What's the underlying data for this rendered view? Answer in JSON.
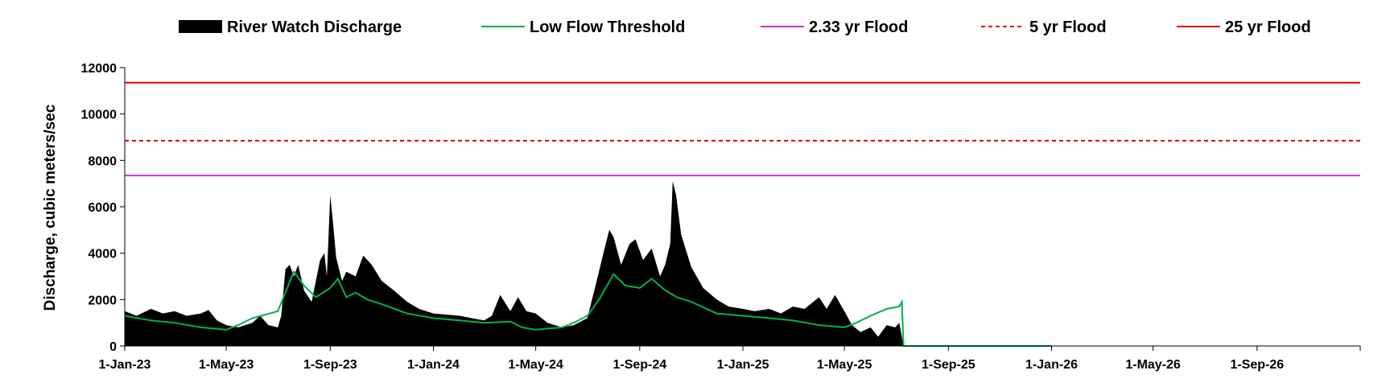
{
  "chart_data": {
    "type": "area",
    "title": "",
    "xlabel": "",
    "ylabel": "Discharge, cubic meters/sec",
    "ylim": [
      0,
      12000
    ],
    "yticks": [
      0,
      2000,
      4000,
      6000,
      8000,
      10000,
      12000
    ],
    "xlim": [
      "2023-01-01",
      "2027-01-01"
    ],
    "xticks": [
      {
        "date": "2023-01-01",
        "label": "1-Jan-23"
      },
      {
        "date": "2023-05-01",
        "label": "1-May-23"
      },
      {
        "date": "2023-09-01",
        "label": "1-Sep-23"
      },
      {
        "date": "2024-01-01",
        "label": "1-Jan-24"
      },
      {
        "date": "2024-05-01",
        "label": "1-May-24"
      },
      {
        "date": "2024-09-01",
        "label": "1-Sep-24"
      },
      {
        "date": "2025-01-01",
        "label": "1-Jan-25"
      },
      {
        "date": "2025-05-01",
        "label": "1-May-25"
      },
      {
        "date": "2025-09-01",
        "label": "1-Sep-25"
      },
      {
        "date": "2026-01-01",
        "label": "1-Jan-26"
      },
      {
        "date": "2026-05-01",
        "label": "1-May-26"
      },
      {
        "date": "2026-09-01",
        "label": "1-Sep-26"
      }
    ],
    "grid": false,
    "legend": "top",
    "series": [
      {
        "name": "River Watch Discharge",
        "kind": "area",
        "color": "#000000",
        "points": [
          [
            "2023-01-01",
            1500
          ],
          [
            "2023-01-15",
            1300
          ],
          [
            "2023-02-01",
            1600
          ],
          [
            "2023-02-15",
            1400
          ],
          [
            "2023-03-01",
            1500
          ],
          [
            "2023-03-15",
            1300
          ],
          [
            "2023-04-01",
            1400
          ],
          [
            "2023-04-10",
            1550
          ],
          [
            "2023-04-20",
            1100
          ],
          [
            "2023-05-01",
            900
          ],
          [
            "2023-05-15",
            800
          ],
          [
            "2023-06-01",
            1000
          ],
          [
            "2023-06-10",
            1300
          ],
          [
            "2023-06-20",
            900
          ],
          [
            "2023-07-01",
            800
          ],
          [
            "2023-07-05",
            1300
          ],
          [
            "2023-07-10",
            3300
          ],
          [
            "2023-07-15",
            3500
          ],
          [
            "2023-07-20",
            3000
          ],
          [
            "2023-07-25",
            3500
          ],
          [
            "2023-08-01",
            2400
          ],
          [
            "2023-08-10",
            1900
          ],
          [
            "2023-08-20",
            3700
          ],
          [
            "2023-08-25",
            4000
          ],
          [
            "2023-08-28",
            3000
          ],
          [
            "2023-09-01",
            6500
          ],
          [
            "2023-09-04",
            5400
          ],
          [
            "2023-09-08",
            3800
          ],
          [
            "2023-09-15",
            2800
          ],
          [
            "2023-09-20",
            3200
          ],
          [
            "2023-10-01",
            3000
          ],
          [
            "2023-10-10",
            3900
          ],
          [
            "2023-10-20",
            3500
          ],
          [
            "2023-11-01",
            2800
          ],
          [
            "2023-11-15",
            2400
          ],
          [
            "2023-12-01",
            1900
          ],
          [
            "2023-12-15",
            1600
          ],
          [
            "2024-01-01",
            1400
          ],
          [
            "2024-02-01",
            1300
          ],
          [
            "2024-02-15",
            1200
          ],
          [
            "2024-03-01",
            1100
          ],
          [
            "2024-03-10",
            1300
          ],
          [
            "2024-03-20",
            2200
          ],
          [
            "2024-04-01",
            1500
          ],
          [
            "2024-04-10",
            2100
          ],
          [
            "2024-04-20",
            1500
          ],
          [
            "2024-05-01",
            1400
          ],
          [
            "2024-05-15",
            1000
          ],
          [
            "2024-06-01",
            800
          ],
          [
            "2024-06-15",
            900
          ],
          [
            "2024-07-01",
            1200
          ],
          [
            "2024-07-10",
            2500
          ],
          [
            "2024-07-20",
            4000
          ],
          [
            "2024-07-27",
            5000
          ],
          [
            "2024-08-01",
            4700
          ],
          [
            "2024-08-10",
            3500
          ],
          [
            "2024-08-20",
            4400
          ],
          [
            "2024-08-27",
            4600
          ],
          [
            "2024-09-05",
            3700
          ],
          [
            "2024-09-15",
            4200
          ],
          [
            "2024-09-25",
            3000
          ],
          [
            "2024-10-01",
            3500
          ],
          [
            "2024-10-07",
            4400
          ],
          [
            "2024-10-10",
            7100
          ],
          [
            "2024-10-14",
            6500
          ],
          [
            "2024-10-20",
            4800
          ],
          [
            "2024-11-01",
            3400
          ],
          [
            "2024-11-15",
            2500
          ],
          [
            "2024-12-01",
            2000
          ],
          [
            "2024-12-15",
            1700
          ],
          [
            "2025-01-01",
            1600
          ],
          [
            "2025-01-15",
            1500
          ],
          [
            "2025-02-01",
            1600
          ],
          [
            "2025-02-15",
            1400
          ],
          [
            "2025-03-01",
            1700
          ],
          [
            "2025-03-15",
            1600
          ],
          [
            "2025-04-01",
            2100
          ],
          [
            "2025-04-10",
            1600
          ],
          [
            "2025-04-20",
            2200
          ],
          [
            "2025-05-01",
            1500
          ],
          [
            "2025-05-10",
            900
          ],
          [
            "2025-05-20",
            600
          ],
          [
            "2025-06-01",
            800
          ],
          [
            "2025-06-10",
            400
          ],
          [
            "2025-06-20",
            900
          ],
          [
            "2025-06-30",
            800
          ],
          [
            "2025-07-05",
            1000
          ],
          [
            "2025-07-10",
            0
          ]
        ]
      },
      {
        "name": "Low Flow Threshold",
        "kind": "line",
        "color": "#00b050",
        "points": [
          [
            "2023-01-01",
            1300
          ],
          [
            "2023-02-01",
            1100
          ],
          [
            "2023-03-01",
            1000
          ],
          [
            "2023-04-01",
            800
          ],
          [
            "2023-05-01",
            700
          ],
          [
            "2023-05-15",
            900
          ],
          [
            "2023-06-01",
            1200
          ],
          [
            "2023-07-01",
            1500
          ],
          [
            "2023-07-20",
            3200
          ],
          [
            "2023-08-01",
            2600
          ],
          [
            "2023-08-15",
            2100
          ],
          [
            "2023-09-01",
            2500
          ],
          [
            "2023-09-10",
            2900
          ],
          [
            "2023-09-20",
            2100
          ],
          [
            "2023-10-01",
            2300
          ],
          [
            "2023-10-15",
            2000
          ],
          [
            "2023-11-01",
            1800
          ],
          [
            "2023-12-01",
            1400
          ],
          [
            "2024-01-01",
            1200
          ],
          [
            "2024-02-01",
            1100
          ],
          [
            "2024-03-01",
            1000
          ],
          [
            "2024-04-01",
            1050
          ],
          [
            "2024-04-15",
            800
          ],
          [
            "2024-05-01",
            700
          ],
          [
            "2024-06-01",
            800
          ],
          [
            "2024-06-15",
            1000
          ],
          [
            "2024-07-01",
            1300
          ],
          [
            "2024-07-15",
            2000
          ],
          [
            "2024-08-01",
            3100
          ],
          [
            "2024-08-15",
            2600
          ],
          [
            "2024-09-01",
            2500
          ],
          [
            "2024-09-15",
            2900
          ],
          [
            "2024-10-01",
            2400
          ],
          [
            "2024-10-15",
            2100
          ],
          [
            "2024-11-01",
            1900
          ],
          [
            "2024-12-01",
            1400
          ],
          [
            "2025-01-01",
            1300
          ],
          [
            "2025-02-01",
            1200
          ],
          [
            "2025-03-01",
            1100
          ],
          [
            "2025-04-01",
            900
          ],
          [
            "2025-05-01",
            800
          ],
          [
            "2025-05-15",
            1000
          ],
          [
            "2025-06-01",
            1300
          ],
          [
            "2025-06-20",
            1600
          ],
          [
            "2025-07-05",
            1700
          ],
          [
            "2025-07-08",
            1900
          ],
          [
            "2025-07-10",
            0
          ],
          [
            "2026-01-01",
            0
          ]
        ]
      },
      {
        "name": "2.33 yr Flood",
        "kind": "hline",
        "color": "#cc33cc",
        "dashed": false,
        "value": 7350
      },
      {
        "name": "5 yr Flood",
        "kind": "hline",
        "color": "#e00000",
        "dashed": true,
        "value": 8850
      },
      {
        "name": "25 yr Flood",
        "kind": "hline",
        "color": "#e00000",
        "dashed": false,
        "value": 11350
      }
    ]
  }
}
